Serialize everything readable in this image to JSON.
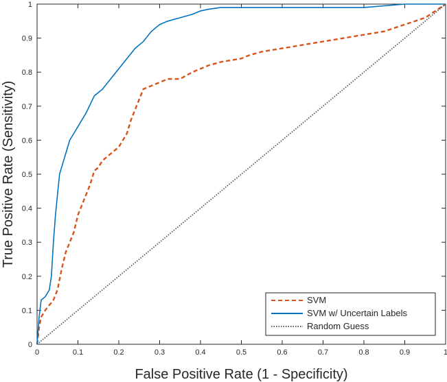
{
  "chart_data": {
    "type": "line",
    "title": "",
    "xlabel": "False Positive Rate (1 - Specificity)",
    "ylabel": "True Positive Rate (Sensitivity)",
    "xlim": [
      0,
      1
    ],
    "ylim": [
      0,
      1
    ],
    "xticks": [
      "0",
      "0.1",
      "0.2",
      "0.3",
      "0.4",
      "0.5",
      "0.6",
      "0.7",
      "0.8",
      "0.9",
      "1"
    ],
    "yticks": [
      "0",
      "0.1",
      "0.2",
      "0.3",
      "0.4",
      "0.5",
      "0.6",
      "0.7",
      "0.8",
      "0.9",
      "1"
    ],
    "grid": false,
    "legend_position": "bottom-right",
    "series": [
      {
        "name": "SVM",
        "color": "#D95319",
        "style": "dashed",
        "x": [
          0,
          0.005,
          0.01,
          0.02,
          0.04,
          0.05,
          0.06,
          0.07,
          0.08,
          0.09,
          0.1,
          0.11,
          0.12,
          0.13,
          0.14,
          0.15,
          0.16,
          0.18,
          0.2,
          0.21,
          0.22,
          0.23,
          0.24,
          0.25,
          0.26,
          0.28,
          0.3,
          0.32,
          0.35,
          0.38,
          0.4,
          0.42,
          0.45,
          0.5,
          0.52,
          0.55,
          0.6,
          0.65,
          0.7,
          0.75,
          0.8,
          0.85,
          0.9,
          0.95,
          1
        ],
        "y": [
          0,
          0.05,
          0.08,
          0.1,
          0.13,
          0.16,
          0.22,
          0.27,
          0.3,
          0.33,
          0.38,
          0.41,
          0.44,
          0.47,
          0.51,
          0.52,
          0.54,
          0.56,
          0.58,
          0.6,
          0.62,
          0.66,
          0.69,
          0.72,
          0.75,
          0.76,
          0.77,
          0.78,
          0.78,
          0.8,
          0.81,
          0.82,
          0.83,
          0.84,
          0.85,
          0.86,
          0.87,
          0.88,
          0.89,
          0.9,
          0.91,
          0.92,
          0.94,
          0.96,
          1
        ]
      },
      {
        "name": "SVM w/ Uncertain Labels",
        "color": "#0072BD",
        "style": "solid",
        "x": [
          0,
          0.005,
          0.01,
          0.02,
          0.03,
          0.035,
          0.04,
          0.045,
          0.05,
          0.055,
          0.06,
          0.07,
          0.08,
          0.09,
          0.1,
          0.12,
          0.14,
          0.16,
          0.18,
          0.2,
          0.22,
          0.24,
          0.26,
          0.28,
          0.3,
          0.32,
          0.35,
          0.38,
          0.4,
          0.42,
          0.45,
          0.5,
          0.55,
          0.6,
          0.7,
          0.8,
          0.9,
          1
        ],
        "y": [
          0,
          0.08,
          0.13,
          0.14,
          0.16,
          0.2,
          0.3,
          0.38,
          0.44,
          0.5,
          0.52,
          0.56,
          0.6,
          0.62,
          0.64,
          0.68,
          0.73,
          0.75,
          0.78,
          0.81,
          0.84,
          0.87,
          0.89,
          0.92,
          0.94,
          0.95,
          0.96,
          0.97,
          0.98,
          0.985,
          0.99,
          0.99,
          0.99,
          0.99,
          0.99,
          0.99,
          1,
          1
        ]
      },
      {
        "name": "Random Guess",
        "color": "#555555",
        "style": "dotted",
        "x": [
          0,
          1
        ],
        "y": [
          0,
          1
        ]
      }
    ]
  }
}
